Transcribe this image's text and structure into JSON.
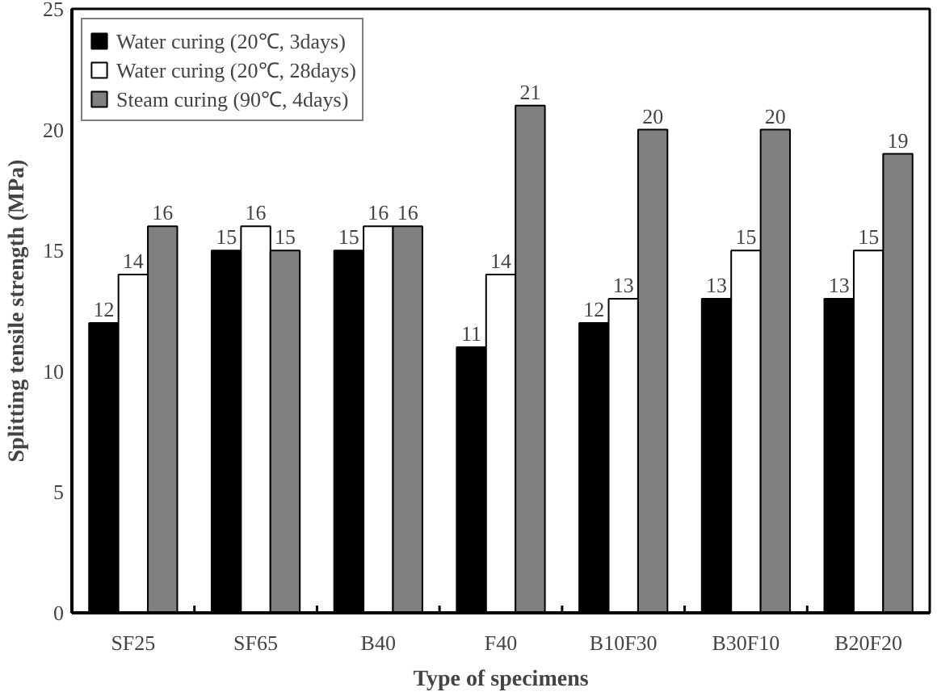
{
  "chart_data": {
    "type": "bar",
    "xlabel": "Type of specimens",
    "ylabel": "Splitting tensile strength (MPa)",
    "categories": [
      "SF25",
      "SF65",
      "B40",
      "F40",
      "B10F30",
      "B30F10",
      "B20F20"
    ],
    "series": [
      {
        "name": "Water curing (20℃, 3days)",
        "color": "#000000",
        "values": [
          12,
          15,
          15,
          11,
          12,
          13,
          13
        ]
      },
      {
        "name": "Water curing (20℃, 28days)",
        "color": "#ffffff",
        "values": [
          14,
          16,
          16,
          14,
          13,
          15,
          15
        ]
      },
      {
        "name": "Steam curing (90℃, 4days)",
        "color": "#808080",
        "values": [
          16,
          15,
          16,
          21,
          20,
          20,
          19
        ]
      }
    ],
    "ylim": [
      0,
      25
    ],
    "yticks": [
      0,
      5,
      10,
      15,
      20,
      25
    ],
    "data_labels": true,
    "grid": false,
    "legend": "top left"
  }
}
